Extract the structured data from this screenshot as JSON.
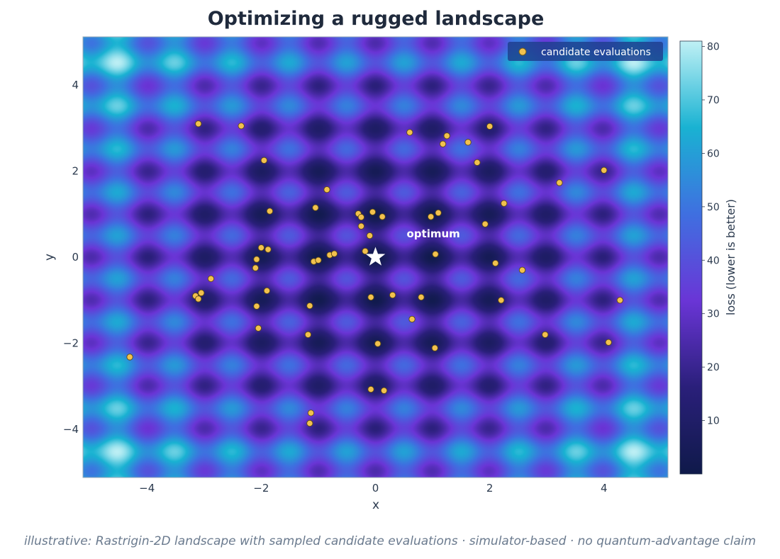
{
  "chart_data": {
    "type": "heatmap",
    "title": "Optimizing a rugged landscape",
    "xlabel": "x",
    "ylabel": "y",
    "xlim": [
      -5.12,
      5.12
    ],
    "ylim": [
      -5.12,
      5.12
    ],
    "xticks": [
      -4,
      -2,
      0,
      2,
      4
    ],
    "yticks": [
      -4,
      -2,
      0,
      2,
      4
    ],
    "surface": "Rastrigin-2D",
    "colormap": [
      "#0f1a4a",
      "#2a1f7a",
      "#6a35d6",
      "#3f6fe0",
      "#19b2d2",
      "#bff0f5"
    ],
    "colorbar": {
      "label": "loss (lower is better)",
      "range": [
        0,
        81
      ],
      "ticks": [
        10,
        20,
        30,
        40,
        50,
        60,
        70,
        80
      ]
    },
    "legend": {
      "placement": "top-right",
      "entries": [
        "candidate evaluations"
      ]
    },
    "marker_color": "#f2c14e",
    "optimum": {
      "x": 0,
      "y": 0,
      "label": "optimum",
      "marker": "star"
    },
    "series": [
      {
        "name": "candidate evaluations",
        "type": "scatter",
        "points": [
          [
            -3.1,
            3.1
          ],
          [
            -2.35,
            3.05
          ],
          [
            -1.95,
            2.25
          ],
          [
            -1.85,
            1.07
          ],
          [
            -0.85,
            1.57
          ],
          [
            -1.05,
            1.15
          ],
          [
            0.6,
            2.9
          ],
          [
            1.25,
            2.82
          ],
          [
            1.18,
            2.63
          ],
          [
            1.62,
            2.67
          ],
          [
            2.0,
            3.04
          ],
          [
            1.78,
            2.2
          ],
          [
            4.0,
            2.02
          ],
          [
            3.22,
            1.73
          ],
          [
            2.25,
            1.25
          ],
          [
            1.92,
            0.77
          ],
          [
            1.1,
            1.03
          ],
          [
            0.97,
            0.94
          ],
          [
            0.12,
            0.94
          ],
          [
            -0.05,
            1.05
          ],
          [
            -0.3,
            1.01
          ],
          [
            -0.25,
            0.93
          ],
          [
            -0.25,
            0.72
          ],
          [
            -0.1,
            0.5
          ],
          [
            -0.18,
            0.14
          ],
          [
            1.05,
            0.07
          ],
          [
            -2.0,
            0.22
          ],
          [
            -1.88,
            0.18
          ],
          [
            -2.08,
            -0.05
          ],
          [
            -2.1,
            -0.25
          ],
          [
            -1.08,
            -0.1
          ],
          [
            -1.0,
            -0.07
          ],
          [
            -0.8,
            0.05
          ],
          [
            -0.72,
            0.08
          ],
          [
            -2.88,
            -0.5
          ],
          [
            -3.15,
            -0.9
          ],
          [
            -3.05,
            -0.83
          ],
          [
            -3.1,
            -0.97
          ],
          [
            -1.9,
            -0.78
          ],
          [
            -2.08,
            -1.14
          ],
          [
            -1.15,
            -1.13
          ],
          [
            -0.08,
            -0.93
          ],
          [
            0.3,
            -0.88
          ],
          [
            0.8,
            -0.93
          ],
          [
            0.64,
            -1.44
          ],
          [
            2.1,
            -0.14
          ],
          [
            2.57,
            -0.3
          ],
          [
            2.2,
            -1.0
          ],
          [
            4.28,
            -1.0
          ],
          [
            2.97,
            -1.8
          ],
          [
            4.08,
            -1.98
          ],
          [
            -2.05,
            -1.65
          ],
          [
            -1.18,
            -1.8
          ],
          [
            0.04,
            -2.01
          ],
          [
            1.04,
            -2.11
          ],
          [
            -4.3,
            -2.32
          ],
          [
            -0.08,
            -3.07
          ],
          [
            0.15,
            -3.1
          ],
          [
            -1.13,
            -3.62
          ],
          [
            -1.15,
            -3.86
          ]
        ]
      }
    ]
  },
  "caption": "illustrative: Rastrigin-2D landscape with sampled candidate evaluations · simulator-based · no quantum-advantage claim"
}
